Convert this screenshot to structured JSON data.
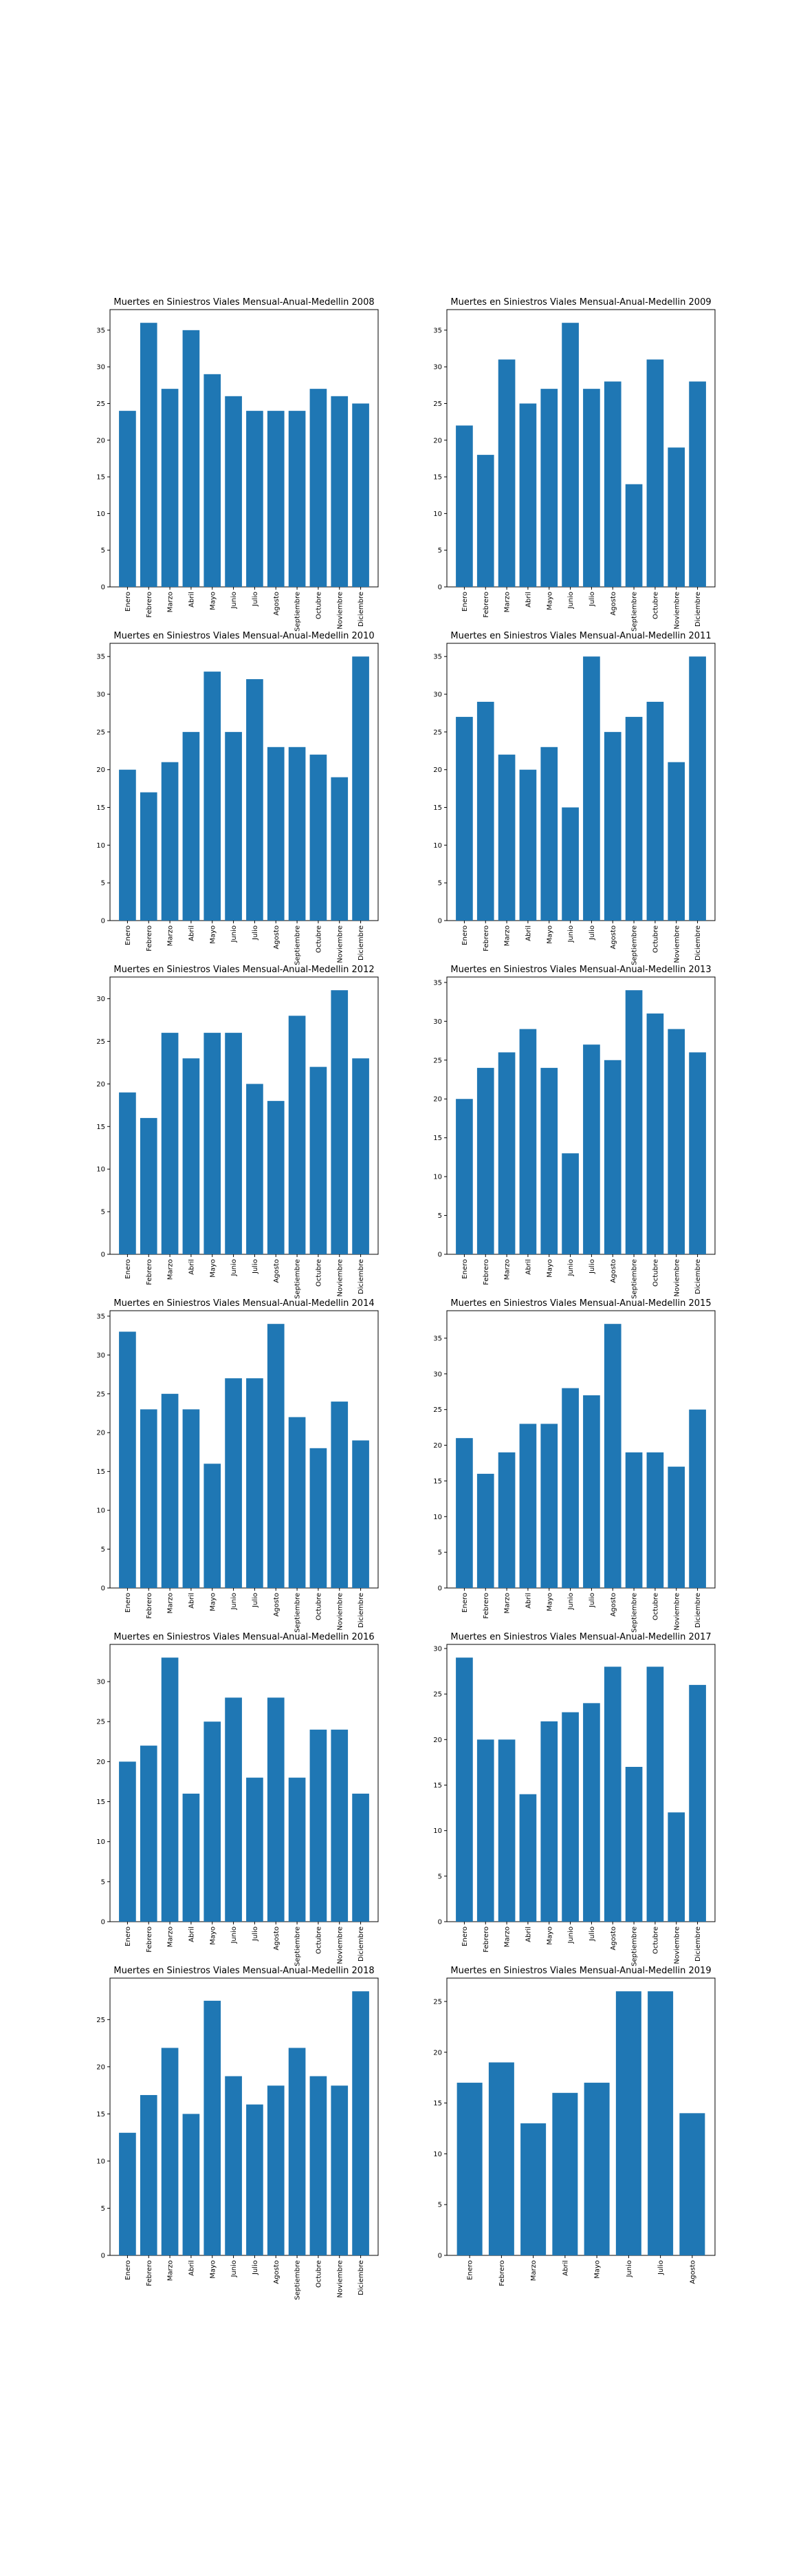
{
  "figure": {
    "bar_color": "#1f77b4",
    "background": "#ffffff",
    "axis_color": "#000000"
  },
  "chart_data": [
    {
      "type": "bar",
      "title": "Muertes en Siniestros Viales Mensual-Anual-Medellin 2008",
      "categories": [
        "Enero",
        "Febrero",
        "Marzo",
        "Abril",
        "Mayo",
        "Junio",
        "Julio",
        "Agosto",
        "Septiembre",
        "Octubre",
        "Noviembre",
        "Diciembre"
      ],
      "values": [
        24,
        36,
        27,
        35,
        29,
        26,
        24,
        24,
        24,
        27,
        26,
        25
      ],
      "ylim": [
        0,
        37.8
      ],
      "yticks": [
        0,
        5,
        10,
        15,
        20,
        25,
        30,
        35
      ],
      "xlabel": "",
      "ylabel": "",
      "grid": false
    },
    {
      "type": "bar",
      "title": "Muertes en Siniestros Viales Mensual-Anual-Medellin 2009",
      "categories": [
        "Enero",
        "Febrero",
        "Marzo",
        "Abril",
        "Mayo",
        "Junio",
        "Julio",
        "Agosto",
        "Septiembre",
        "Octubre",
        "Noviembre",
        "Diciembre"
      ],
      "values": [
        22,
        18,
        31,
        25,
        27,
        36,
        27,
        28,
        14,
        31,
        19,
        28
      ],
      "ylim": [
        0,
        37.8
      ],
      "yticks": [
        0,
        5,
        10,
        15,
        20,
        25,
        30,
        35
      ],
      "xlabel": "",
      "ylabel": "",
      "grid": false
    },
    {
      "type": "bar",
      "title": "Muertes en Siniestros Viales Mensual-Anual-Medellin 2010",
      "categories": [
        "Enero",
        "Febrero",
        "Marzo",
        "Abril",
        "Mayo",
        "Junio",
        "Julio",
        "Agosto",
        "Septiembre",
        "Octubre",
        "Noviembre",
        "Diciembre"
      ],
      "values": [
        20,
        17,
        21,
        25,
        33,
        25,
        32,
        23,
        23,
        22,
        19,
        35
      ],
      "ylim": [
        0,
        36.75
      ],
      "yticks": [
        0,
        5,
        10,
        15,
        20,
        25,
        30,
        35
      ],
      "xlabel": "",
      "ylabel": "",
      "grid": false
    },
    {
      "type": "bar",
      "title": "Muertes en Siniestros Viales Mensual-Anual-Medellin 2011",
      "categories": [
        "Enero",
        "Febrero",
        "Marzo",
        "Abril",
        "Mayo",
        "Junio",
        "Julio",
        "Agosto",
        "Septiembre",
        "Octubre",
        "Noviembre",
        "Diciembre"
      ],
      "values": [
        27,
        29,
        22,
        20,
        23,
        15,
        35,
        25,
        27,
        29,
        21,
        35
      ],
      "ylim": [
        0,
        36.75
      ],
      "yticks": [
        0,
        5,
        10,
        15,
        20,
        25,
        30,
        35
      ],
      "xlabel": "",
      "ylabel": "",
      "grid": false
    },
    {
      "type": "bar",
      "title": "Muertes en Siniestros Viales Mensual-Anual-Medellin 2012",
      "categories": [
        "Enero",
        "Febrero",
        "Marzo",
        "Abril",
        "Mayo",
        "Junio",
        "Julio",
        "Agosto",
        "Septiembre",
        "Octubre",
        "Noviembre",
        "Diciembre"
      ],
      "values": [
        19,
        16,
        26,
        23,
        26,
        26,
        20,
        18,
        28,
        22,
        31,
        23
      ],
      "ylim": [
        0,
        32.55
      ],
      "yticks": [
        0,
        5,
        10,
        15,
        20,
        25,
        30
      ],
      "xlabel": "",
      "ylabel": "",
      "grid": false
    },
    {
      "type": "bar",
      "title": "Muertes en Siniestros Viales Mensual-Anual-Medellin 2013",
      "categories": [
        "Enero",
        "Febrero",
        "Marzo",
        "Abril",
        "Mayo",
        "Junio",
        "Julio",
        "Agosto",
        "Septiembre",
        "Octubre",
        "Noviembre",
        "Diciembre"
      ],
      "values": [
        20,
        24,
        26,
        29,
        24,
        13,
        27,
        25,
        34,
        31,
        29,
        26
      ],
      "ylim": [
        0,
        35.7
      ],
      "yticks": [
        0,
        5,
        10,
        15,
        20,
        25,
        30,
        35
      ],
      "xlabel": "",
      "ylabel": "",
      "grid": false
    },
    {
      "type": "bar",
      "title": "Muertes en Siniestros Viales Mensual-Anual-Medellin 2014",
      "categories": [
        "Enero",
        "Febrero",
        "Marzo",
        "Abril",
        "Mayo",
        "Junio",
        "Julio",
        "Agosto",
        "Septiembre",
        "Octubre",
        "Noviembre",
        "Diciembre"
      ],
      "values": [
        33,
        23,
        25,
        23,
        16,
        27,
        27,
        34,
        22,
        18,
        24,
        19
      ],
      "ylim": [
        0,
        35.7
      ],
      "yticks": [
        0,
        5,
        10,
        15,
        20,
        25,
        30,
        35
      ],
      "xlabel": "",
      "ylabel": "",
      "grid": false
    },
    {
      "type": "bar",
      "title": "Muertes en Siniestros Viales Mensual-Anual-Medellin 2015",
      "categories": [
        "Enero",
        "Febrero",
        "Marzo",
        "Abril",
        "Mayo",
        "Junio",
        "Julio",
        "Agosto",
        "Septiembre",
        "Octubre",
        "Noviembre",
        "Diciembre"
      ],
      "values": [
        21,
        16,
        19,
        23,
        23,
        28,
        27,
        37,
        19,
        19,
        17,
        25
      ],
      "ylim": [
        0,
        38.85
      ],
      "yticks": [
        0,
        5,
        10,
        15,
        20,
        25,
        30,
        35
      ],
      "xlabel": "",
      "ylabel": "",
      "grid": false
    },
    {
      "type": "bar",
      "title": "Muertes en Siniestros Viales Mensual-Anual-Medellin 2016",
      "categories": [
        "Enero",
        "Febrero",
        "Marzo",
        "Abril",
        "Mayo",
        "Junio",
        "Julio",
        "Agosto",
        "Septiembre",
        "Octubre",
        "Noviembre",
        "Diciembre"
      ],
      "values": [
        20,
        22,
        33,
        16,
        25,
        28,
        18,
        28,
        18,
        24,
        24,
        16
      ],
      "ylim": [
        0,
        34.65
      ],
      "yticks": [
        0,
        5,
        10,
        15,
        20,
        25,
        30
      ],
      "xlabel": "",
      "ylabel": "",
      "grid": false
    },
    {
      "type": "bar",
      "title": "Muertes en Siniestros Viales Mensual-Anual-Medellin 2017",
      "categories": [
        "Enero",
        "Febrero",
        "Marzo",
        "Abril",
        "Mayo",
        "Junio",
        "Julio",
        "Agosto",
        "Septiembre",
        "Octubre",
        "Noviembre",
        "Diciembre"
      ],
      "values": [
        29,
        20,
        20,
        14,
        22,
        23,
        24,
        28,
        17,
        28,
        12,
        26
      ],
      "ylim": [
        0,
        30.45
      ],
      "yticks": [
        0,
        5,
        10,
        15,
        20,
        25,
        30
      ],
      "xlabel": "",
      "ylabel": "",
      "grid": false
    },
    {
      "type": "bar",
      "title": "Muertes en Siniestros Viales Mensual-Anual-Medellin 2018",
      "categories": [
        "Enero",
        "Febrero",
        "Marzo",
        "Abril",
        "Mayo",
        "Junio",
        "Julio",
        "Agosto",
        "Septiembre",
        "Octubre",
        "Noviembre",
        "Diciembre"
      ],
      "values": [
        13,
        17,
        22,
        15,
        27,
        19,
        16,
        18,
        22,
        19,
        18,
        28
      ],
      "ylim": [
        0,
        29.4
      ],
      "yticks": [
        0,
        5,
        10,
        15,
        20,
        25
      ],
      "xlabel": "",
      "ylabel": "",
      "grid": false
    },
    {
      "type": "bar",
      "title": "Muertes en Siniestros Viales Mensual-Anual-Medellin 2019",
      "categories": [
        "Enero",
        "Febrero",
        "Marzo",
        "Abril",
        "Mayo",
        "Junio",
        "Julio",
        "Agosto"
      ],
      "values": [
        17,
        19,
        13,
        16,
        17,
        26,
        26,
        14
      ],
      "ylim": [
        0,
        27.3
      ],
      "yticks": [
        0,
        5,
        10,
        15,
        20,
        25
      ],
      "xlabel": "",
      "ylabel": "",
      "grid": false
    }
  ]
}
